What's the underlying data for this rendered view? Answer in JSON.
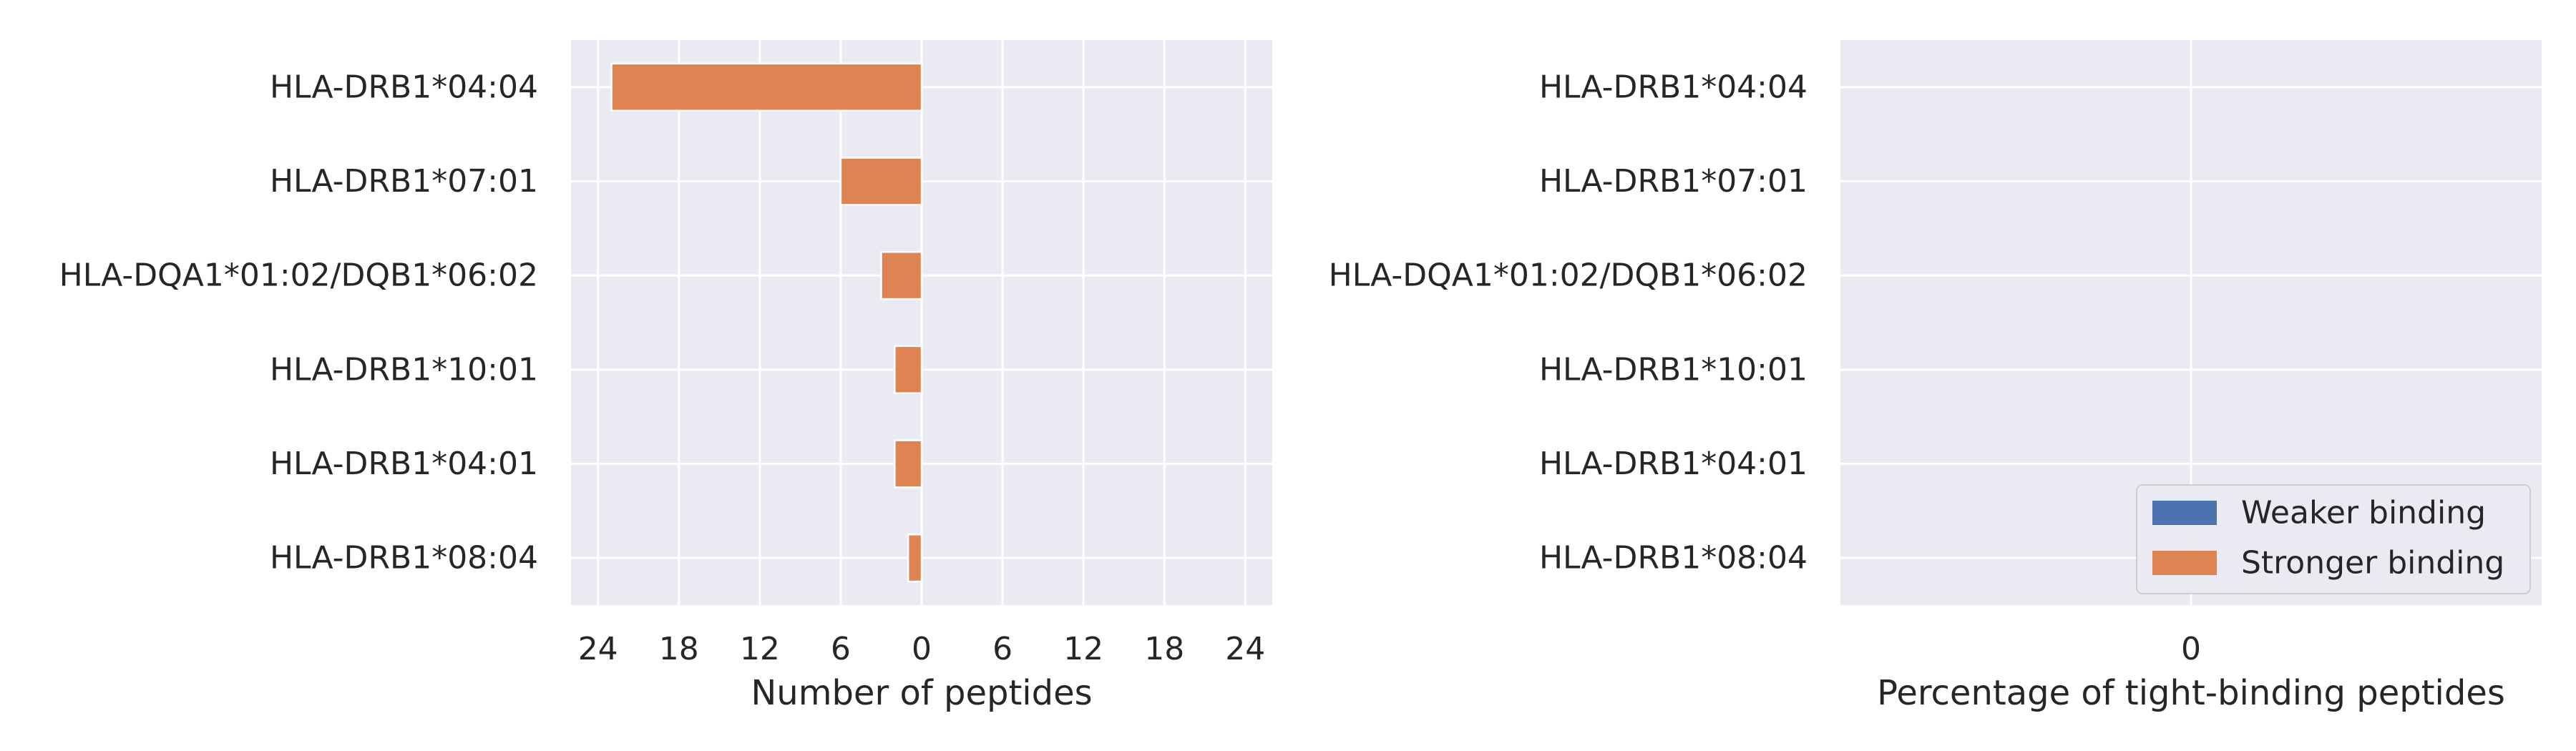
{
  "colors": {
    "background": "#eaeaf2",
    "grid": "#ffffff",
    "text": "#262626",
    "weaker": "#4c72b0",
    "stronger": "#dd8452"
  },
  "chart_data": [
    {
      "type": "bar",
      "orientation": "horizontal",
      "categories": [
        "HLA-DRB1*04:04",
        "HLA-DRB1*07:01",
        "HLA-DQA1*01:02/DQB1*06:02",
        "HLA-DRB1*10:01",
        "HLA-DRB1*04:01",
        "HLA-DRB1*08:04"
      ],
      "series": [
        {
          "name": "Weaker binding",
          "color": "#4c72b0",
          "values": [
            0,
            0,
            0,
            0,
            0,
            0
          ],
          "direction": "right"
        },
        {
          "name": "Stronger binding",
          "color": "#dd8452",
          "values": [
            23,
            6,
            3,
            2,
            2,
            1
          ],
          "direction": "left"
        }
      ],
      "xlabel": "Number of peptides",
      "xlim": [
        -26,
        26
      ],
      "xticks": [
        -24,
        -18,
        -12,
        -6,
        0,
        6,
        12,
        18,
        24
      ],
      "xtick_labels": [
        "24",
        "18",
        "12",
        "6",
        "0",
        "6",
        "12",
        "18",
        "24"
      ],
      "grid": true
    },
    {
      "type": "bar",
      "orientation": "horizontal",
      "categories": [
        "HLA-DRB1*04:04",
        "HLA-DRB1*07:01",
        "HLA-DQA1*01:02/DQB1*06:02",
        "HLA-DRB1*10:01",
        "HLA-DRB1*04:01",
        "HLA-DRB1*08:04"
      ],
      "series": [
        {
          "name": "Weaker binding",
          "color": "#4c72b0",
          "values": [
            0,
            0,
            0,
            0,
            0,
            0
          ]
        },
        {
          "name": "Stronger binding",
          "color": "#dd8452",
          "values": [
            0,
            0,
            0,
            0,
            0,
            0
          ]
        }
      ],
      "xlabel": "Percentage of tight-binding peptides",
      "xlim": [
        -1,
        1
      ],
      "xticks": [
        0
      ],
      "xtick_labels": [
        "0"
      ],
      "grid": true,
      "legend": {
        "position": "lower-right",
        "entries": [
          "Weaker binding",
          "Stronger binding"
        ]
      }
    }
  ]
}
